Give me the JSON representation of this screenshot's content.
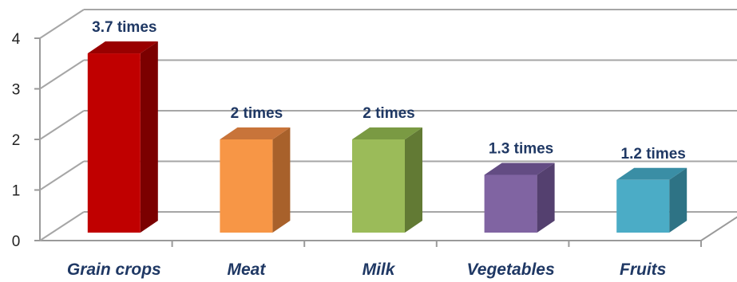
{
  "chart_data": {
    "type": "bar",
    "style": "3d-column",
    "categories": [
      "Grain crops",
      "Meat",
      "Milk",
      "Vegetables",
      "Fruits"
    ],
    "values": [
      3.7,
      2,
      2,
      1.3,
      1.2
    ],
    "data_labels": [
      "3.7 times",
      "2 times",
      "2 times",
      "1.3 times",
      "1.2 times"
    ],
    "y_ticks": [
      "0",
      "1",
      "2",
      "3",
      "4"
    ],
    "ylim": [
      0,
      4
    ],
    "grid": true,
    "legend": false,
    "colors": [
      {
        "front": "#c00000",
        "side": "#7b0000",
        "top": "#990000"
      },
      {
        "front": "#f79646",
        "side": "#a8612b",
        "top": "#c8743a"
      },
      {
        "front": "#9bbb59",
        "side": "#627a34",
        "top": "#7a9a43"
      },
      {
        "front": "#8064a2",
        "side": "#54406f",
        "top": "#634c83"
      },
      {
        "front": "#4bacc6",
        "side": "#2e7385",
        "top": "#3a8ea5"
      }
    ]
  }
}
